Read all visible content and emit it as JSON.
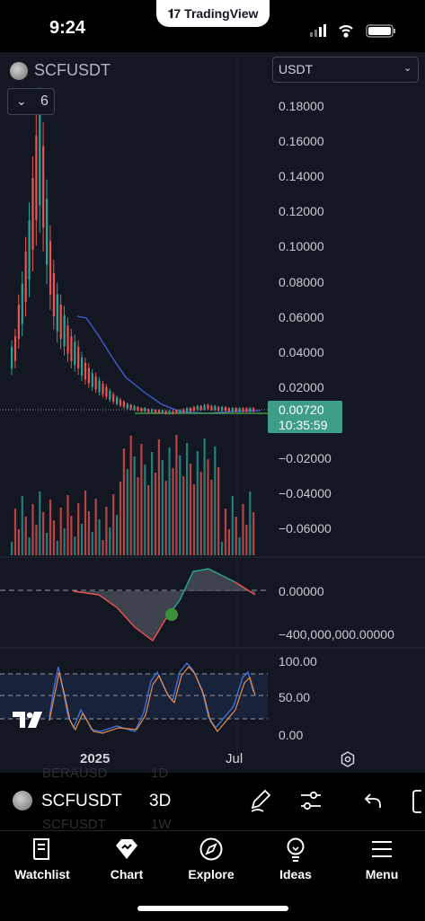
{
  "status": {
    "time": "9:24",
    "banner": "TradingView"
  },
  "header": {
    "symbol": "SCFUSDT",
    "currency": "USDT",
    "indicators_count": "6"
  },
  "price_axis": [
    "0.18000",
    "0.16000",
    "0.14000",
    "0.12000",
    "0.10000",
    "0.08000",
    "0.06000",
    "0.04000",
    "0.02000",
    "−0.02000",
    "−0.04000",
    "−0.06000"
  ],
  "price_badge": {
    "value": "0.00720",
    "countdown": "10:35:59"
  },
  "indicator1_axis": [
    "0.00000",
    "−400,000,000.00000"
  ],
  "indicator2_axis": [
    "100.00",
    "50.00",
    "0.00"
  ],
  "time_axis": {
    "year": "2025",
    "month": "Jul"
  },
  "toolbar": {
    "symbol": "SCFUSDT",
    "interval": "3D",
    "ghost_symbols": [
      "BERAUSD",
      "SCFUSDT"
    ],
    "ghost_intervals": [
      "1D",
      "1W"
    ]
  },
  "nav": [
    {
      "label": "Watchlist",
      "icon": "watchlist-icon"
    },
    {
      "label": "Chart",
      "icon": "chart-icon"
    },
    {
      "label": "Explore",
      "icon": "compass-icon"
    },
    {
      "label": "Ideas",
      "icon": "lightbulb-icon"
    },
    {
      "label": "Menu",
      "icon": "hamburger-icon"
    }
  ],
  "colors": {
    "up": "#26a69a",
    "down": "#ef5350",
    "ma": "#2962ff",
    "badge": "#3d9d86",
    "background": "#131722"
  }
}
